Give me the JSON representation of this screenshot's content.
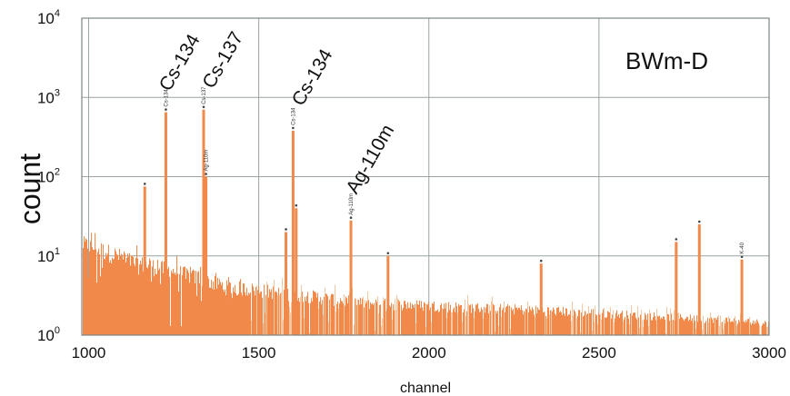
{
  "chart_data": {
    "type": "bar",
    "title": "",
    "sample_label": "BWm-D",
    "xlabel": "channel",
    "ylabel": "count",
    "xlim": [
      980,
      3000
    ],
    "ylim": [
      1,
      10000
    ],
    "yscale": "log",
    "grid": true,
    "x_ticks": [
      1000,
      1500,
      2000,
      2500,
      3000
    ],
    "y_ticks": [
      {
        "value": 1,
        "base": "10",
        "exp": "0"
      },
      {
        "value": 10,
        "base": "10",
        "exp": "1"
      },
      {
        "value": 100,
        "base": "10",
        "exp": "2"
      },
      {
        "value": 1000,
        "base": "10",
        "exp": "3"
      },
      {
        "value": 10000,
        "base": "10",
        "exp": "4"
      }
    ],
    "color": "#F0894A",
    "light_color": "#F2C7A3",
    "peaks": [
      {
        "x": 1165,
        "y": 75
      },
      {
        "x": 1227,
        "y": 650
      },
      {
        "x": 1338,
        "y": 700
      },
      {
        "x": 1345,
        "y": 100
      },
      {
        "x": 1580,
        "y": 20
      },
      {
        "x": 1601,
        "y": 380
      },
      {
        "x": 1610,
        "y": 40
      },
      {
        "x": 1771,
        "y": 28
      },
      {
        "x": 1880,
        "y": 10
      },
      {
        "x": 2330,
        "y": 8
      },
      {
        "x": 2727,
        "y": 15
      },
      {
        "x": 2795,
        "y": 25
      },
      {
        "x": 2920,
        "y": 9
      }
    ],
    "annotations": [
      {
        "text": "Cs-134",
        "x": 1227,
        "y": 650
      },
      {
        "text": "Cs-137",
        "x": 1338,
        "y": 700
      },
      {
        "text": "Cs-134",
        "x": 1601,
        "y": 380
      },
      {
        "text": "Ag-110m",
        "x": 1771,
        "y": 28
      }
    ],
    "small_labels": [
      {
        "text": "Cs-134",
        "x": 1227,
        "y": 650
      },
      {
        "text": "Cs-137",
        "x": 1338,
        "y": 700
      },
      {
        "text": "Ag-110m",
        "x": 1345,
        "y": 100
      },
      {
        "text": "Cs-134",
        "x": 1601,
        "y": 380
      },
      {
        "text": "Ag-110m",
        "x": 1771,
        "y": 28
      },
      {
        "text": "K-40",
        "x": 2920,
        "y": 9
      }
    ]
  }
}
